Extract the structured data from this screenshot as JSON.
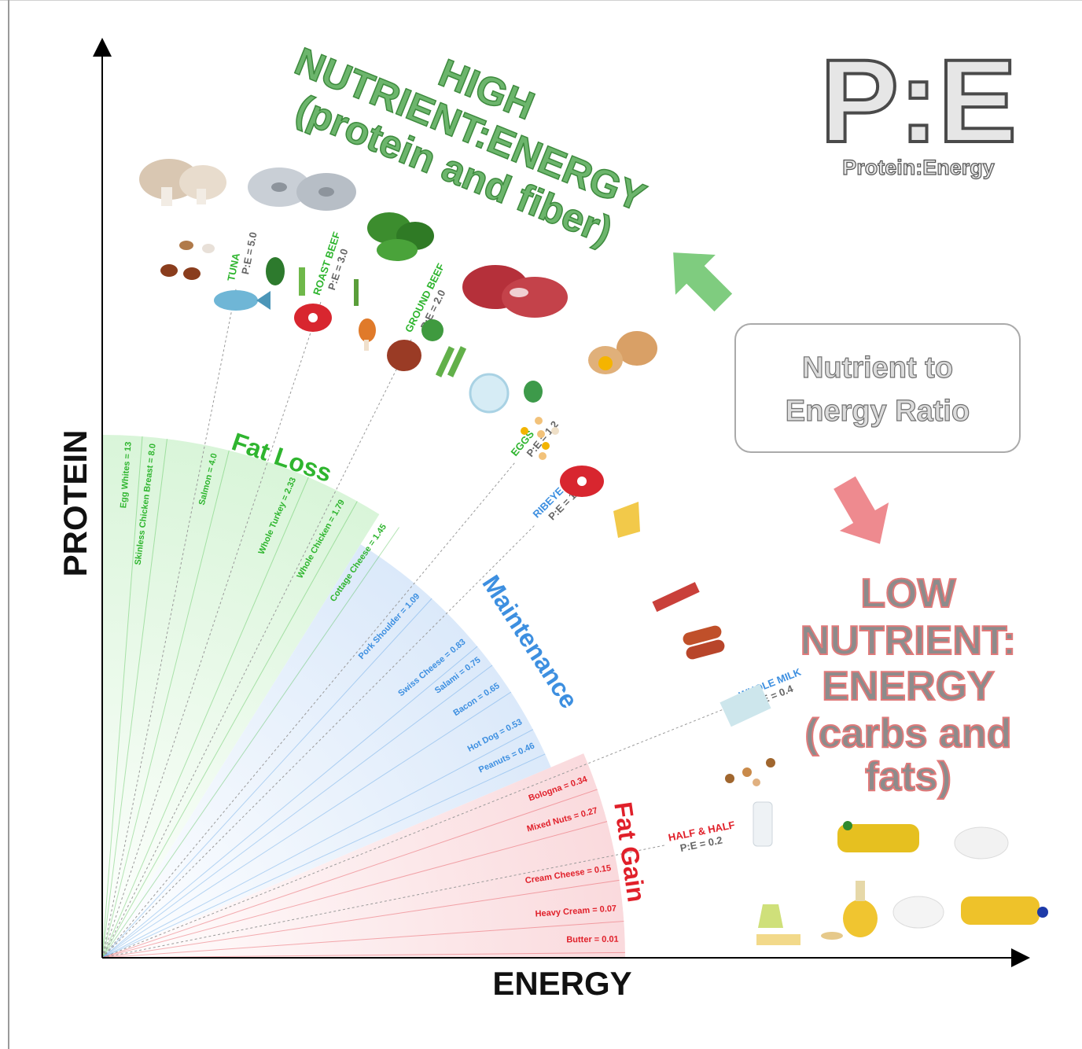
{
  "chart_data": {
    "type": "radial-ratio",
    "xlabel": "ENERGY",
    "ylabel": "PROTEIN",
    "logo": {
      "main": "P:E",
      "subtitle": "Protein:Energy"
    },
    "ratio_box": {
      "line1": "Nutrient to",
      "line2": "Energy Ratio"
    },
    "high_label": [
      "HIGH",
      "NUTRIENT:ENERGY",
      "(protein and fiber)"
    ],
    "low_label": [
      "LOW",
      "NUTRIENT:",
      "ENERGY",
      "(carbs and",
      "fats)"
    ],
    "zones": [
      {
        "name": "Fat Loss",
        "color": "#2fb52f",
        "fill": "#d9f5d9"
      },
      {
        "name": "Maintenance",
        "color": "#3d8fe0",
        "fill": "#dbe9fa"
      },
      {
        "name": "Fat Gain",
        "color": "#e0202a",
        "fill": "#fadadd"
      }
    ],
    "rays": [
      {
        "label": "Egg Whites = 13",
        "value": 13,
        "zone": 0
      },
      {
        "label": "Skinless Chicken Breast = 8.0",
        "value": 8.0,
        "zone": 0
      },
      {
        "label": "Salmon = 4.0",
        "value": 4.0,
        "zone": 0
      },
      {
        "label": "Whole Turkey = 2.33",
        "value": 2.33,
        "zone": 0
      },
      {
        "label": "Whole Chicken = 1.79",
        "value": 1.79,
        "zone": 0
      },
      {
        "label": "Cottage Cheese = 1.45",
        "value": 1.45,
        "zone": 0
      },
      {
        "label": "Pork Shoulder = 1.09",
        "value": 1.09,
        "zone": 1
      },
      {
        "label": "Swiss Cheese = 0.83",
        "value": 0.83,
        "zone": 1
      },
      {
        "label": "Salami = 0.75",
        "value": 0.75,
        "zone": 1
      },
      {
        "label": "Bacon = 0.65",
        "value": 0.65,
        "zone": 1
      },
      {
        "label": "Hot Dog = 0.53",
        "value": 0.53,
        "zone": 1
      },
      {
        "label": "Peanuts = 0.46",
        "value": 0.46,
        "zone": 1
      },
      {
        "label": "Bologna = 0.34",
        "value": 0.34,
        "zone": 2
      },
      {
        "label": "Mixed Nuts = 0.27",
        "value": 0.27,
        "zone": 2
      },
      {
        "label": "Cream Cheese = 0.15",
        "value": 0.15,
        "zone": 2
      },
      {
        "label": "Heavy Cream = 0.07",
        "value": 0.07,
        "zone": 2
      },
      {
        "label": "Butter = 0.01",
        "value": 0.01,
        "zone": 2
      }
    ],
    "callouts": [
      {
        "name": "TUNA",
        "value": "P:E = 5.0",
        "pe": 5.0,
        "color": "#2fb52f"
      },
      {
        "name": "ROAST BEEF",
        "value": "P:E = 3.0",
        "pe": 3.0,
        "color": "#2fb52f"
      },
      {
        "name": "GROUND BEEF",
        "value": "P:E = 2.0",
        "pe": 2.0,
        "color": "#2fb52f"
      },
      {
        "name": "EGGS",
        "value": "P:E = 1.2",
        "pe": 1.2,
        "color": "#2fb52f"
      },
      {
        "name": "RIBEYE",
        "value": "P:E = 1.0",
        "pe": 1.0,
        "color": "#3d8fe0"
      },
      {
        "name": "WHOLE MILK",
        "value": "P:E = 0.4",
        "pe": 0.4,
        "color": "#3d8fe0"
      },
      {
        "name": "HALF & HALF",
        "value": "P:E = 0.2",
        "pe": 0.2,
        "color": "#e0202a"
      }
    ]
  }
}
